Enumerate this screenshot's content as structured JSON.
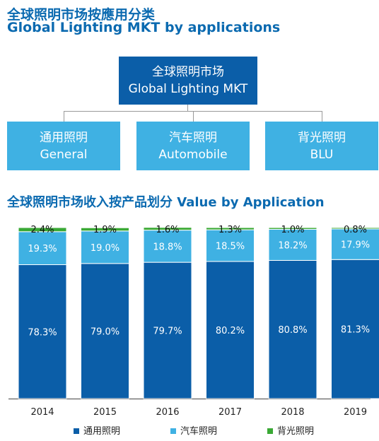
{
  "header": {
    "title_cn": "全球照明市场按應用分类",
    "title_en": "Global Lighting MKT by applications"
  },
  "diagram": {
    "root": {
      "cn": "全球照明市场",
      "en": "Global Lighting MKT"
    },
    "children": [
      {
        "cn": "通用照明",
        "en": "General"
      },
      {
        "cn": "汽车照明",
        "en": "Automobile"
      },
      {
        "cn": "背光照明",
        "en": "BLU"
      }
    ]
  },
  "section_title": "全球照明市场收入按产品划分 Value by Application",
  "chart_data": {
    "type": "bar",
    "stacked": true,
    "categories": [
      "2014",
      "2015",
      "2016",
      "2017",
      "2018",
      "2019"
    ],
    "series": [
      {
        "name": "通用照明",
        "color": "#0b5ea8",
        "values": [
          78.3,
          79.0,
          79.7,
          80.2,
          80.8,
          81.3
        ],
        "labels": [
          "78.3%",
          "79.0%",
          "79.7%",
          "80.2%",
          "80.8%",
          "81.3%"
        ]
      },
      {
        "name": "汽车照明",
        "color": "#3fb1e3",
        "values": [
          19.3,
          19.0,
          18.8,
          18.5,
          18.2,
          17.9
        ],
        "labels": [
          "19.3%",
          "19.0%",
          "18.8%",
          "18.5%",
          "18.2%",
          "17.9%"
        ]
      },
      {
        "name": "背光照明",
        "color": "#3aa935",
        "values": [
          2.4,
          1.9,
          1.6,
          1.3,
          1.0,
          0.8
        ],
        "labels": [
          "2.4%",
          "1.9%",
          "1.6%",
          "1.3%",
          "1.0%",
          "0.8%"
        ]
      }
    ],
    "ylim": [
      0,
      100
    ],
    "legend_position": "bottom",
    "grid": false
  }
}
